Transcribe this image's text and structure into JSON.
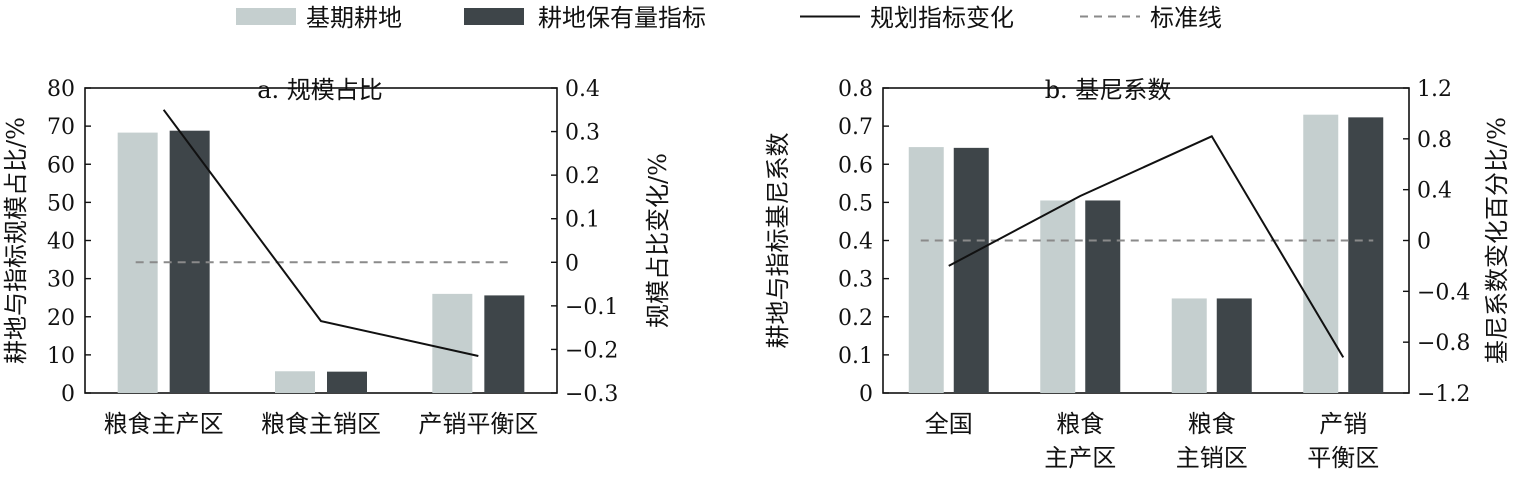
{
  "legend": [
    {
      "label": "基期耕地",
      "kind": "bar",
      "color": "#c5cfcf"
    },
    {
      "label": "耕地保有量指标",
      "kind": "bar",
      "color": "#3e4549"
    },
    {
      "label": "规划指标变化",
      "kind": "line",
      "color": "#111111"
    },
    {
      "label": "标准线",
      "kind": "dash",
      "color": "#8a8a8a"
    }
  ],
  "colors": {
    "base": "#c5cfcf",
    "target": "#3e4549",
    "line": "#111111",
    "dash": "#8a8a8a"
  },
  "chart_data": [
    {
      "type": "bar",
      "title": "a. 规模占比",
      "ylabel": "耕地与指标规模占比/%",
      "y2label": "规模占比变化/%",
      "categories": [
        [
          "粮食主产区"
        ],
        [
          "粮食主销区"
        ],
        [
          "产销平衡区"
        ]
      ],
      "ylim": [
        0,
        80
      ],
      "yticks": [
        0,
        10,
        20,
        30,
        40,
        50,
        60,
        70,
        80
      ],
      "ytick_labels": [
        "0",
        "10",
        "20",
        "30",
        "40",
        "50",
        "60",
        "70",
        "80"
      ],
      "y2lim": [
        -0.3,
        0.4
      ],
      "y2ticks": [
        -0.3,
        -0.2,
        -0.1,
        0,
        0.1,
        0.2,
        0.3,
        0.4
      ],
      "y2tick_labels": [
        "−0.3",
        "−0.2",
        "−0.1",
        "0",
        "0.1",
        "0.2",
        "0.3",
        "0.4"
      ],
      "series": [
        {
          "name": "基期耕地",
          "values": [
            68.3,
            5.7,
            26.0
          ]
        },
        {
          "name": "耕地保有量指标",
          "values": [
            68.8,
            5.6,
            25.6
          ]
        }
      ],
      "line": {
        "name": "规划指标变化",
        "axis": "right",
        "values": [
          0.35,
          -0.135,
          -0.215
        ]
      },
      "reference": {
        "name": "标准线",
        "axis": "right",
        "value": 0
      }
    },
    {
      "type": "bar",
      "title": "b. 基尼系数",
      "ylabel": "耕地与指标基尼系数",
      "y2label": "基尼系数变化百分比/%",
      "categories": [
        [
          "全国"
        ],
        [
          "粮食",
          "主产区"
        ],
        [
          "粮食",
          "主销区"
        ],
        [
          "产销",
          "平衡区"
        ]
      ],
      "ylim": [
        0,
        0.8
      ],
      "yticks": [
        0,
        0.1,
        0.2,
        0.3,
        0.4,
        0.5,
        0.6,
        0.7,
        0.8
      ],
      "ytick_labels": [
        "0",
        "0.1",
        "0.2",
        "0.3",
        "0.4",
        "0.5",
        "0.6",
        "0.7",
        "0.8"
      ],
      "y2lim": [
        -1.2,
        1.2
      ],
      "y2ticks": [
        -1.2,
        -0.8,
        -0.4,
        0,
        0.4,
        0.8,
        1.2
      ],
      "y2tick_labels": [
        "−1.2",
        "−0.8",
        "−0.4",
        "0",
        "0.4",
        "0.8",
        "1.2"
      ],
      "series": [
        {
          "name": "基期耕地",
          "values": [
            0.645,
            0.505,
            0.248,
            0.73
          ]
        },
        {
          "name": "耕地保有量指标",
          "values": [
            0.643,
            0.505,
            0.248,
            0.723
          ]
        }
      ],
      "line": {
        "name": "规划指标变化",
        "axis": "right",
        "values": [
          -0.2,
          0.35,
          0.82,
          -0.92
        ]
      },
      "reference": {
        "name": "标准线",
        "axis": "right",
        "value": 0
      }
    }
  ]
}
